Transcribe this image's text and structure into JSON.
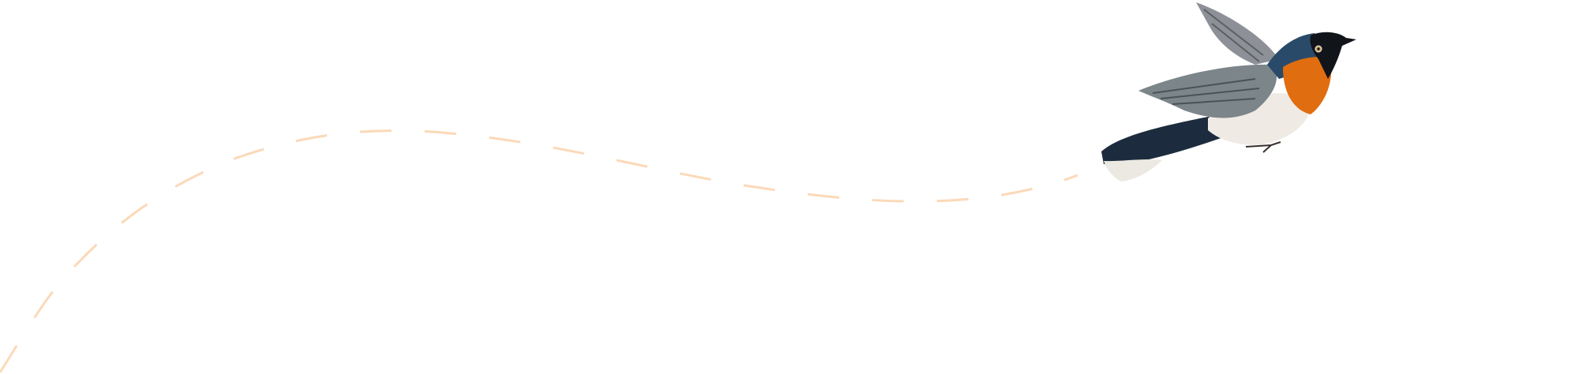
{
  "illustration": {
    "subject": "bird-in-flight",
    "path_color": "#fbd9b8",
    "bird_colors": {
      "back": "#1f3448",
      "wing": "#7d8a92",
      "throat": "#e06d10",
      "belly": "#f1ede6",
      "mask": "#111418"
    }
  }
}
